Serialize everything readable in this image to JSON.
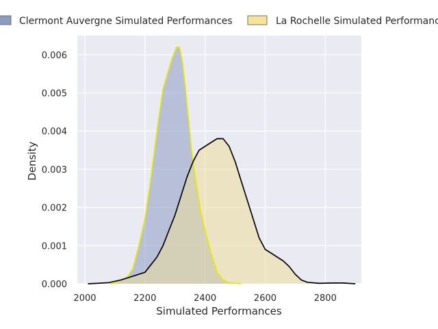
{
  "chart_data": {
    "type": "area",
    "title": "",
    "xlabel": "Simulated Performances",
    "ylabel": "Density",
    "xlim": [
      1975,
      2920
    ],
    "ylim": [
      0,
      0.0065
    ],
    "x_ticks": [
      2000,
      2200,
      2400,
      2600,
      2800
    ],
    "x_tick_labels": [
      "2000",
      "2200",
      "2400",
      "2600",
      "2800"
    ],
    "y_ticks": [
      0,
      0.001,
      0.002,
      0.003,
      0.004,
      0.005,
      0.006
    ],
    "y_tick_labels": [
      "0.000",
      "0.001",
      "0.002",
      "0.003",
      "0.004",
      "0.005",
      "0.006"
    ],
    "grid": true,
    "legend_position": "top (above plot)",
    "background": "#eaeaf2",
    "series": [
      {
        "name": "Clermont Auvergne Simulated Performances",
        "fill": "#8d9dc2",
        "fill_opacity": 0.55,
        "line": "#e8e800",
        "legend_fill": "#8c9cbf",
        "points": [
          [
            2085,
            0.0
          ],
          [
            2100,
            2e-05
          ],
          [
            2120,
            0.0001
          ],
          [
            2140,
            0.00016
          ],
          [
            2160,
            0.0004
          ],
          [
            2180,
            0.001
          ],
          [
            2200,
            0.0017
          ],
          [
            2215,
            0.0025
          ],
          [
            2230,
            0.0034
          ],
          [
            2245,
            0.0043
          ],
          [
            2260,
            0.0051
          ],
          [
            2275,
            0.0055
          ],
          [
            2290,
            0.0059
          ],
          [
            2305,
            0.0062
          ],
          [
            2315,
            0.0062
          ],
          [
            2325,
            0.0058
          ],
          [
            2335,
            0.0051
          ],
          [
            2345,
            0.0043
          ],
          [
            2355,
            0.0035
          ],
          [
            2365,
            0.0029
          ],
          [
            2375,
            0.0024
          ],
          [
            2385,
            0.0019
          ],
          [
            2400,
            0.0014
          ],
          [
            2420,
            0.0008
          ],
          [
            2440,
            0.0003
          ],
          [
            2460,
            0.0001
          ],
          [
            2480,
            3e-05
          ],
          [
            2520,
            0.0
          ]
        ]
      },
      {
        "name": "La Rochelle Simulated Performances",
        "fill": "#ecdc9c",
        "fill_opacity": 0.55,
        "line": "#000000",
        "legend_fill": "#f6e49a",
        "points": [
          [
            2010,
            0.0
          ],
          [
            2040,
            1e-05
          ],
          [
            2080,
            3e-05
          ],
          [
            2120,
            0.0001
          ],
          [
            2160,
            0.0002
          ],
          [
            2200,
            0.0003
          ],
          [
            2220,
            0.0005
          ],
          [
            2240,
            0.0007
          ],
          [
            2260,
            0.001
          ],
          [
            2280,
            0.0014
          ],
          [
            2300,
            0.0018
          ],
          [
            2320,
            0.0023
          ],
          [
            2340,
            0.0028
          ],
          [
            2360,
            0.0032
          ],
          [
            2380,
            0.0035
          ],
          [
            2400,
            0.0036
          ],
          [
            2420,
            0.0037
          ],
          [
            2440,
            0.0038
          ],
          [
            2460,
            0.0038
          ],
          [
            2480,
            0.0036
          ],
          [
            2500,
            0.0032
          ],
          [
            2520,
            0.0027
          ],
          [
            2540,
            0.0022
          ],
          [
            2560,
            0.0017
          ],
          [
            2580,
            0.0012
          ],
          [
            2600,
            0.0009
          ],
          [
            2620,
            0.0008
          ],
          [
            2640,
            0.0007
          ],
          [
            2660,
            0.0006
          ],
          [
            2680,
            0.00045
          ],
          [
            2700,
            0.00025
          ],
          [
            2720,
            0.0001
          ],
          [
            2740,
            4e-05
          ],
          [
            2780,
            1e-05
          ],
          [
            2820,
            2e-05
          ],
          [
            2860,
            2e-05
          ],
          [
            2900,
            0.0
          ]
        ]
      }
    ]
  }
}
